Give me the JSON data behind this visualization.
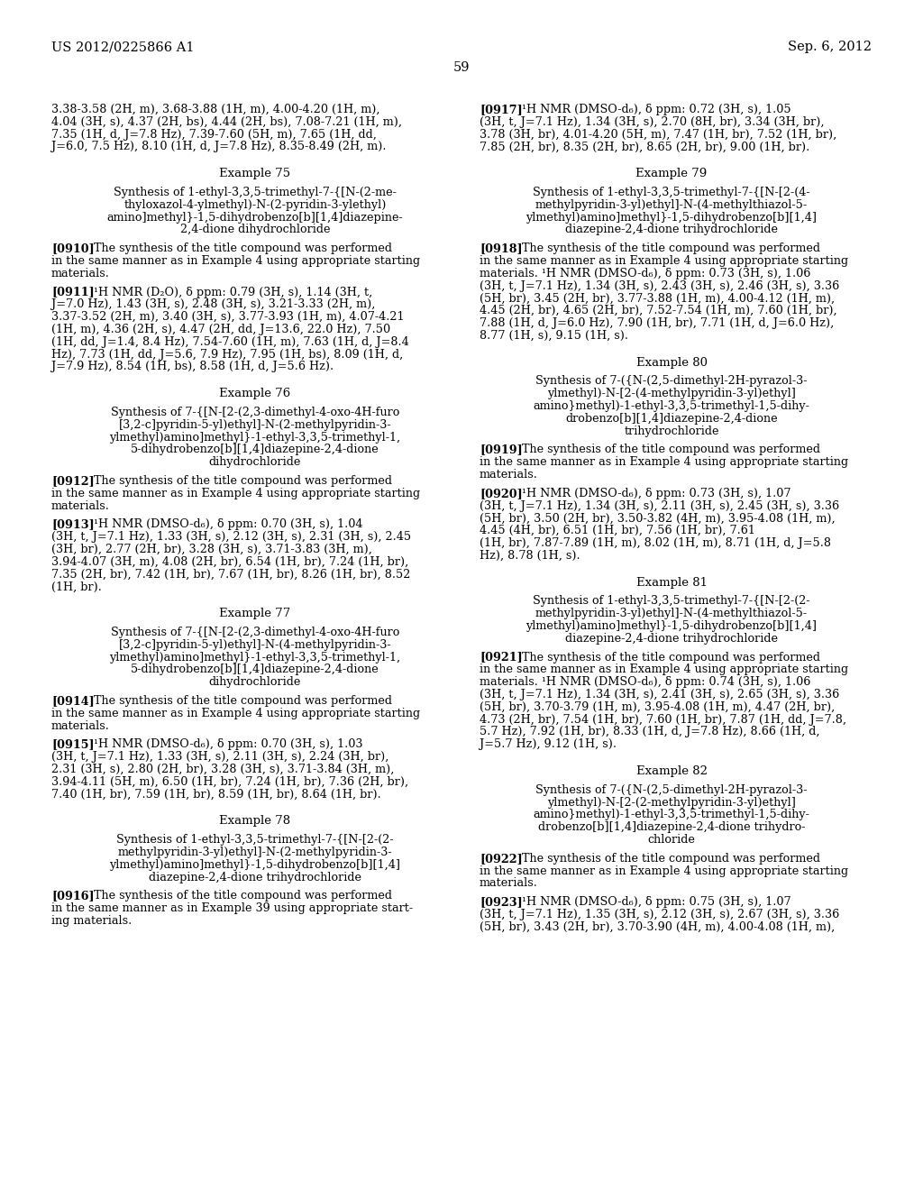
{
  "background_color": "#ffffff",
  "header_left": "US 2012/0225866 A1",
  "header_right": "Sep. 6, 2012",
  "page_number": "59",
  "left_column": [
    {
      "type": "body",
      "text": "3.38-3.58 (2H, m), 3.68-3.88 (1H, m), 4.00-4.20 (1H, m),\n4.04 (3H, s), 4.37 (2H, bs), 4.44 (2H, bs), 7.08-7.21 (1H, m),\n7.35 (1H, d, J=7.8 Hz), 7.39-7.60 (5H, m), 7.65 (1H, dd,\nJ=6.0, 7.5 Hz), 8.10 (1H, d, J=7.8 Hz), 8.35-8.49 (2H, m)."
    },
    {
      "type": "example_heading",
      "text": "Example 75"
    },
    {
      "type": "example_title",
      "text": "Synthesis of 1-ethyl-3,3,5-trimethyl-7-{[N-(2-me-\nthyloxazol-4-ylmethyl)-N-(2-pyridin-3-ylethyl)\namino]methyl}-1,5-dihydrobenzo[b][1,4]diazepine-\n2,4-dione dihydrochloride"
    },
    {
      "type": "body_num",
      "num": "[0910]",
      "text": "The synthesis of the title compound was performed\nin the same manner as in Example 4 using appropriate starting\nmaterials."
    },
    {
      "type": "body_num",
      "num": "[0911]",
      "text": "¹H NMR (D₂O), δ ppm: 0.79 (3H, s), 1.14 (3H, t,\nJ=7.0 Hz), 1.43 (3H, s), 2.48 (3H, s), 3.21-3.33 (2H, m),\n3.37-3.52 (2H, m), 3.40 (3H, s), 3.77-3.93 (1H, m), 4.07-4.21\n(1H, m), 4.36 (2H, s), 4.47 (2H, dd, J=13.6, 22.0 Hz), 7.50\n(1H, dd, J=1.4, 8.4 Hz), 7.54-7.60 (1H, m), 7.63 (1H, d, J=8.4\nHz), 7.73 (1H, dd, J=5.6, 7.9 Hz), 7.95 (1H, bs), 8.09 (1H, d,\nJ=7.9 Hz), 8.54 (1H, bs), 8.58 (1H, d, J=5.6 Hz)."
    },
    {
      "type": "example_heading",
      "text": "Example 76"
    },
    {
      "type": "example_title",
      "text": "Synthesis of 7-{[N-[2-(2,3-dimethyl-4-oxo-4H-furo\n[3,2-c]pyridin-5-yl)ethyl]-N-(2-methylpyridin-3-\nylmethyl)amino]methyl}-1-ethyl-3,3,5-trimethyl-1,\n5-dihydrobenzo[b][1,4]diazepine-2,4-dione\ndihydrochloride"
    },
    {
      "type": "body_num",
      "num": "[0912]",
      "text": "The synthesis of the title compound was performed\nin the same manner as in Example 4 using appropriate starting\nmaterials."
    },
    {
      "type": "body_num",
      "num": "[0913]",
      "text": "¹H NMR (DMSO-d₆), δ ppm: 0.70 (3H, s), 1.04\n(3H, t, J=7.1 Hz), 1.33 (3H, s), 2.12 (3H, s), 2.31 (3H, s), 2.45\n(3H, br), 2.77 (2H, br), 3.28 (3H, s), 3.71-3.83 (3H, m),\n3.94-4.07 (3H, m), 4.08 (2H, br), 6.54 (1H, br), 7.24 (1H, br),\n7.35 (2H, br), 7.42 (1H, br), 7.67 (1H, br), 8.26 (1H, br), 8.52\n(1H, br)."
    },
    {
      "type": "example_heading",
      "text": "Example 77"
    },
    {
      "type": "example_title",
      "text": "Synthesis of 7-{[N-[2-(2,3-dimethyl-4-oxo-4H-furo\n[3,2-c]pyridin-5-yl)ethyl]-N-(4-methylpyridin-3-\nylmethyl)amino]methyl}-1-ethyl-3,3,5-trimethyl-1,\n5-dihydrobenzo[b][1,4]diazepine-2,4-dione\ndihydrochloride"
    },
    {
      "type": "body_num",
      "num": "[0914]",
      "text": "The synthesis of the title compound was performed\nin the same manner as in Example 4 using appropriate starting\nmaterials."
    },
    {
      "type": "body_num",
      "num": "[0915]",
      "text": "¹H NMR (DMSO-d₆), δ ppm: 0.70 (3H, s), 1.03\n(3H, t, J=7.1 Hz), 1.33 (3H, s), 2.11 (3H, s), 2.24 (3H, br),\n2.31 (3H, s), 2.80 (2H, br), 3.28 (3H, s), 3.71-3.84 (3H, m),\n3.94-4.11 (5H, m), 6.50 (1H, br), 7.24 (1H, br), 7.36 (2H, br),\n7.40 (1H, br), 7.59 (1H, br), 8.59 (1H, br), 8.64 (1H, br)."
    },
    {
      "type": "example_heading",
      "text": "Example 78"
    },
    {
      "type": "example_title",
      "text": "Synthesis of 1-ethyl-3,3,5-trimethyl-7-{[N-[2-(2-\nmethylpyridin-3-yl)ethyl]-N-(2-methylpyridin-3-\nylmethyl)amino]methyl}-1,5-dihydrobenzo[b][1,4]\ndiazepine-2,4-dione trihydrochloride"
    },
    {
      "type": "body_num",
      "num": "[0916]",
      "text": "The synthesis of the title compound was performed\nin the same manner as in Example 39 using appropriate start-\ning materials."
    }
  ],
  "right_column": [
    {
      "type": "body_num",
      "num": "[0917]",
      "text": "¹H NMR (DMSO-d₆), δ ppm: 0.72 (3H, s), 1.05\n(3H, t, J=7.1 Hz), 1.34 (3H, s), 2.70 (8H, br), 3.34 (3H, br),\n3.78 (3H, br), 4.01-4.20 (5H, m), 7.47 (1H, br), 7.52 (1H, br),\n7.85 (2H, br), 8.35 (2H, br), 8.65 (2H, br), 9.00 (1H, br)."
    },
    {
      "type": "example_heading",
      "text": "Example 79"
    },
    {
      "type": "example_title",
      "text": "Synthesis of 1-ethyl-3,3,5-trimethyl-7-{[N-[2-(4-\nmethylpyridin-3-yl)ethyl]-N-(4-methylthiazol-5-\nylmethyl)amino]methyl}-1,5-dihydrobenzo[b][1,4]\ndiazepine-2,4-dione trihydrochloride"
    },
    {
      "type": "body_num",
      "num": "[0918]",
      "text": "The synthesis of the title compound was performed\nin the same manner as in Example 4 using appropriate starting\nmaterials. ¹H NMR (DMSO-d₆), δ ppm: 0.73 (3H, s), 1.06\n(3H, t, J=7.1 Hz), 1.34 (3H, s), 2.43 (3H, s), 2.46 (3H, s), 3.36\n(5H, br), 3.45 (2H, br), 3.77-3.88 (1H, m), 4.00-4.12 (1H, m),\n4.45 (2H, br), 4.65 (2H, br), 7.52-7.54 (1H, m), 7.60 (1H, br),\n7.88 (1H, d, J=6.0 Hz), 7.90 (1H, br), 7.71 (1H, d, J=6.0 Hz),\n8.77 (1H, s), 9.15 (1H, s)."
    },
    {
      "type": "example_heading",
      "text": "Example 80"
    },
    {
      "type": "example_title",
      "text": "Synthesis of 7-({N-(2,5-dimethyl-2H-pyrazol-3-\nylmethyl)-N-[2-(4-methylpyridin-3-yl)ethyl]\namino}methyl)-1-ethyl-3,3,5-trimethyl-1,5-dihy-\ndrobenzo[b][1,4]diazepine-2,4-dione\ntrihydrochloride"
    },
    {
      "type": "body_num",
      "num": "[0919]",
      "text": "The synthesis of the title compound was performed\nin the same manner as in Example 4 using appropriate starting\nmaterials."
    },
    {
      "type": "body_num",
      "num": "[0920]",
      "text": "¹H NMR (DMSO-d₆), δ ppm: 0.73 (3H, s), 1.07\n(3H, t, J=7.1 Hz), 1.34 (3H, s), 2.11 (3H, s), 2.45 (3H, s), 3.36\n(5H, br), 3.50 (2H, br), 3.50-3.82 (4H, m), 3.95-4.08 (1H, m),\n4.45 (4H, br), 6.51 (1H, br), 7.56 (1H, br), 7.61\n(1H, br), 7.87-7.89 (1H, m), 8.02 (1H, m), 8.71 (1H, d, J=5.8\nHz), 8.78 (1H, s)."
    },
    {
      "type": "example_heading",
      "text": "Example 81"
    },
    {
      "type": "example_title",
      "text": "Synthesis of 1-ethyl-3,3,5-trimethyl-7-{[N-[2-(2-\nmethylpyridin-3-yl)ethyl]-N-(4-methylthiazol-5-\nylmethyl)amino]methyl}-1,5-dihydrobenzo[b][1,4]\ndiazepine-2,4-dione trihydrochloride"
    },
    {
      "type": "body_num",
      "num": "[0921]",
      "text": "The synthesis of the title compound was performed\nin the same manner as in Example 4 using appropriate starting\nmaterials. ¹H NMR (DMSO-d₆), δ ppm: 0.74 (3H, s), 1.06\n(3H, t, J=7.1 Hz), 1.34 (3H, s), 2.41 (3H, s), 2.65 (3H, s), 3.36\n(5H, br), 3.70-3.79 (1H, m), 3.95-4.08 (1H, m), 4.47 (2H, br),\n4.73 (2H, br), 7.54 (1H, br), 7.60 (1H, br), 7.87 (1H, dd, J=7.8,\n5.7 Hz), 7.92 (1H, br), 8.33 (1H, d, J=7.8 Hz), 8.66 (1H, d,\nJ=5.7 Hz), 9.12 (1H, s)."
    },
    {
      "type": "example_heading",
      "text": "Example 82"
    },
    {
      "type": "example_title",
      "text": "Synthesis of 7-({N-(2,5-dimethyl-2H-pyrazol-3-\nylmethyl)-N-[2-(2-methylpyridin-3-yl)ethyl]\namino}methyl)-1-ethyl-3,3,5-trimethyl-1,5-dihy-\ndrobenzo[b][1,4]diazepine-2,4-dione trihydro-\nchloride"
    },
    {
      "type": "body_num",
      "num": "[0922]",
      "text": "The synthesis of the title compound was performed\nin the same manner as in Example 4 using appropriate starting\nmaterials."
    },
    {
      "type": "body_num",
      "num": "[0923]",
      "text": "¹H NMR (DMSO-d₆), δ ppm: 0.75 (3H, s), 1.07\n(3H, t, J=7.1 Hz), 1.35 (3H, s), 2.12 (3H, s), 2.67 (3H, s), 3.36\n(5H, br), 3.43 (2H, br), 3.70-3.90 (4H, m), 4.00-4.08 (1H, m),"
    }
  ]
}
